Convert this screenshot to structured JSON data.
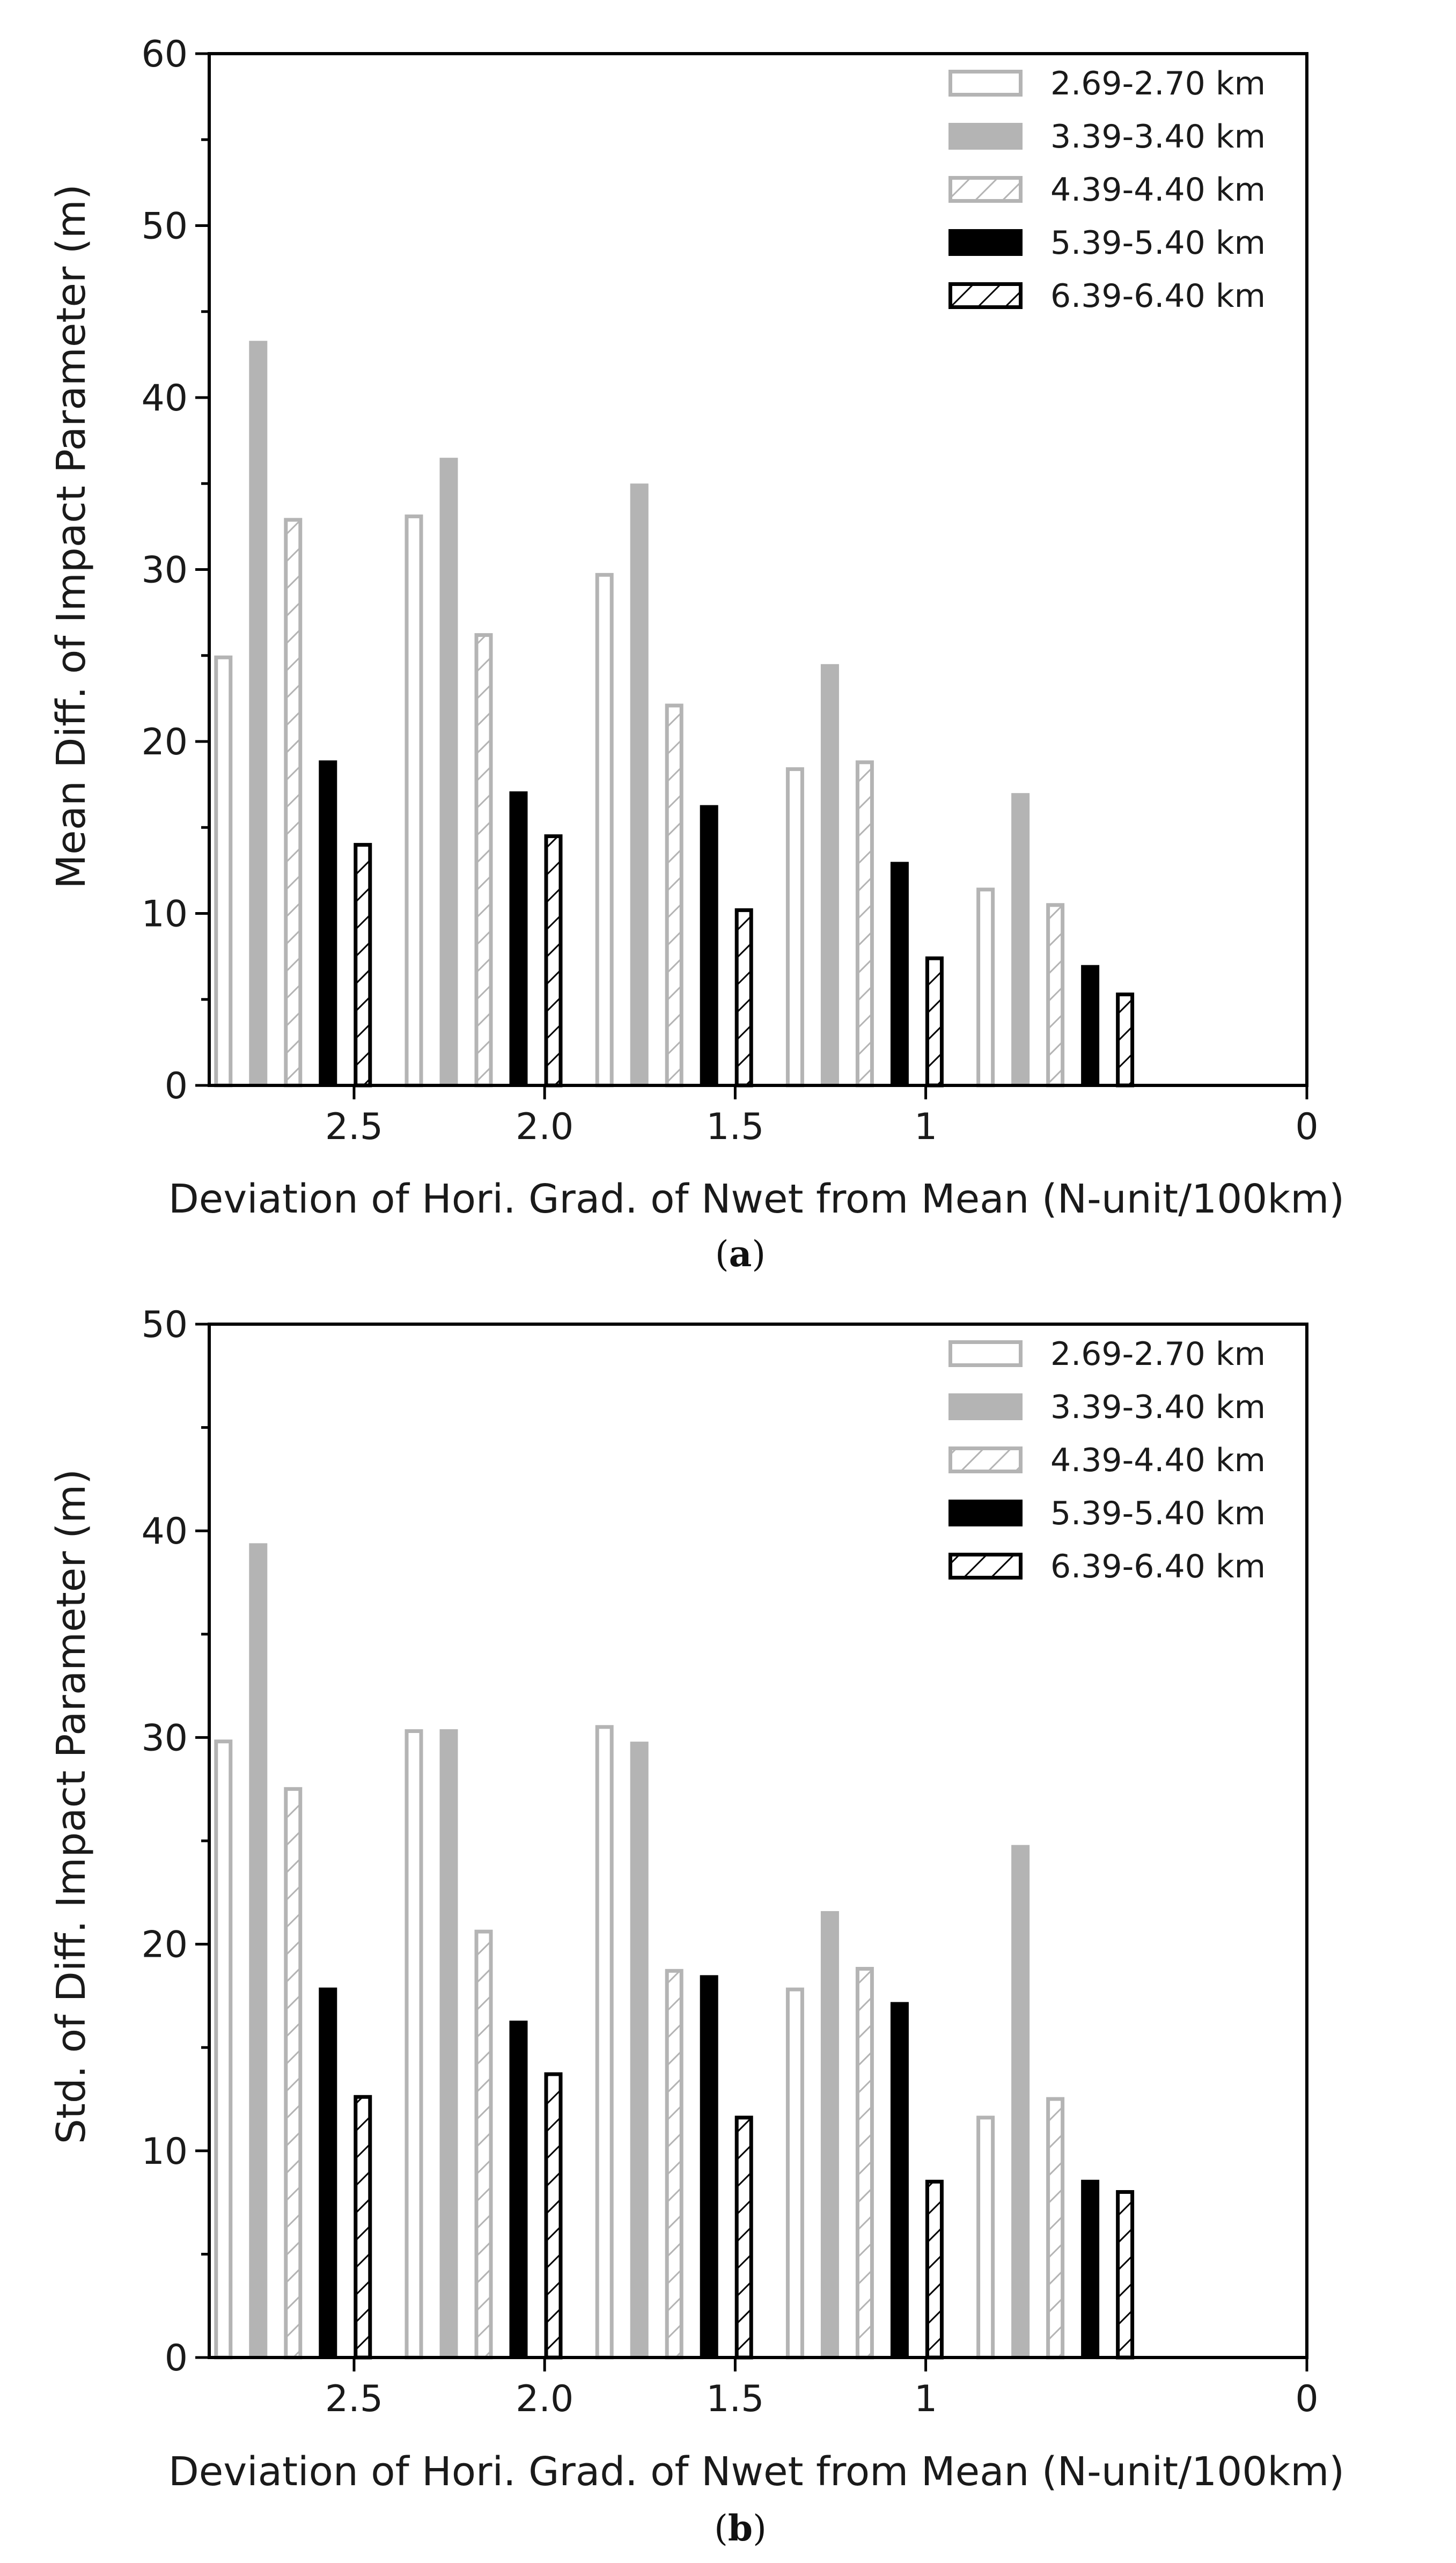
{
  "colors": {
    "light": "#b4b4b4",
    "dark": "#000000",
    "axis": "#000000",
    "bg": "#ffffff"
  },
  "legend": [
    {
      "label": "2.69-2.70 km",
      "style": "outline-light"
    },
    {
      "label": "3.39-3.40 km",
      "style": "filled-light"
    },
    {
      "label": "4.39-4.40 km",
      "style": "hatch-light"
    },
    {
      "label": "5.39-5.40 km",
      "style": "filled-dark"
    },
    {
      "label": "6.39-6.40 km",
      "style": "hatch-dark"
    }
  ],
  "chart_data": [
    {
      "type": "bar",
      "caption_letter": "a",
      "xlabel": "Deviation of Hori. Grad. of Nwet from Mean (N-unit/100km)",
      "ylabel": "Mean Diff. of Impact Parameter (m)",
      "ylim": [
        0,
        60
      ],
      "yticks": [
        "0",
        "10",
        "20",
        "30",
        "40",
        "50",
        "60"
      ],
      "xlim": [
        2.88,
        0.0
      ],
      "xticks": [
        {
          "value": 2.5,
          "label": "2.5"
        },
        {
          "value": 2.0,
          "label": "2.0"
        },
        {
          "value": 1.5,
          "label": "1.5"
        },
        {
          "value": 1.0,
          "label": "1"
        },
        {
          "value": 0.0,
          "label": "0"
        }
      ],
      "group_centers": [
        2.66,
        2.16,
        1.66,
        1.16,
        0.66
      ],
      "series": [
        {
          "name": "2.69-2.70 km",
          "values": [
            25.0,
            33.2,
            29.8,
            18.5,
            11.5
          ]
        },
        {
          "name": "3.39-3.40 km",
          "values": [
            43.3,
            36.5,
            35.0,
            24.5,
            17.0
          ]
        },
        {
          "name": "4.39-4.40 km",
          "values": [
            33.0,
            26.3,
            22.2,
            18.9,
            10.6
          ]
        },
        {
          "name": "5.39-5.40 km",
          "values": [
            18.9,
            17.1,
            16.3,
            13.0,
            7.0
          ]
        },
        {
          "name": "6.39-6.40 km",
          "values": [
            14.1,
            14.6,
            10.3,
            7.5,
            5.4
          ]
        }
      ]
    },
    {
      "type": "bar",
      "caption_letter": "b",
      "xlabel": "Deviation of Hori. Grad. of Nwet from Mean (N-unit/100km)",
      "ylabel": "Std. of Diff. Impact Parameter (m)",
      "ylim": [
        0,
        50
      ],
      "yticks": [
        "0",
        "10",
        "20",
        "30",
        "40",
        "50"
      ],
      "xlim": [
        2.88,
        0.0
      ],
      "xticks": [
        {
          "value": 2.5,
          "label": "2.5"
        },
        {
          "value": 2.0,
          "label": "2.0"
        },
        {
          "value": 1.5,
          "label": "1.5"
        },
        {
          "value": 1.0,
          "label": "1"
        },
        {
          "value": 0.0,
          "label": "0"
        }
      ],
      "group_centers": [
        2.66,
        2.16,
        1.66,
        1.16,
        0.66
      ],
      "series": [
        {
          "name": "2.69-2.70 km",
          "values": [
            29.9,
            30.4,
            30.6,
            17.9,
            11.7
          ]
        },
        {
          "name": "3.39-3.40 km",
          "values": [
            39.4,
            30.4,
            29.8,
            21.6,
            24.8
          ]
        },
        {
          "name": "4.39-4.40 km",
          "values": [
            27.6,
            20.7,
            18.8,
            18.9,
            12.6
          ]
        },
        {
          "name": "5.39-5.40 km",
          "values": [
            17.9,
            16.3,
            18.5,
            17.2,
            8.6
          ]
        },
        {
          "name": "6.39-6.40 km",
          "values": [
            12.7,
            13.8,
            11.7,
            8.6,
            8.1
          ]
        }
      ]
    }
  ]
}
